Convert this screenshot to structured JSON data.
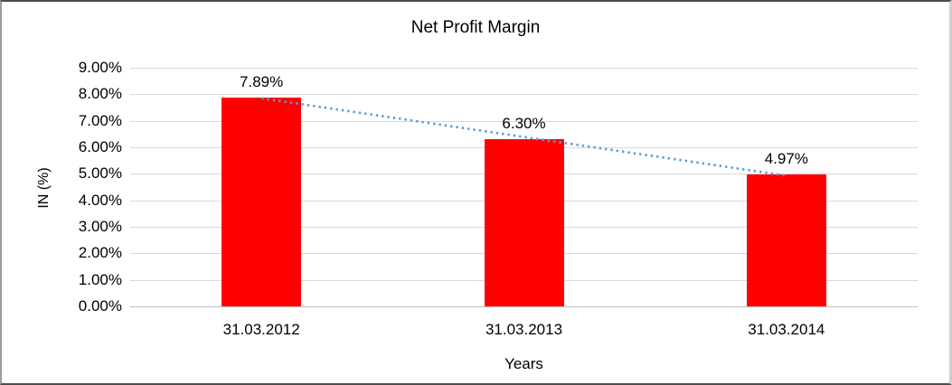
{
  "chart_data": {
    "type": "bar",
    "title": "Net Profit Margin",
    "ylabel": "IN (%)",
    "xlabel": "Years",
    "categories": [
      "31.03.2012",
      "31.03.2013",
      "31.03.2014"
    ],
    "values": [
      7.89,
      6.3,
      4.97
    ],
    "data_labels": [
      "7.89%",
      "6.30%",
      "4.97%"
    ],
    "y_ticks": [
      "9.00%",
      "8.00%",
      "7.00%",
      "6.00%",
      "5.00%",
      "4.00%",
      "3.00%",
      "2.00%",
      "1.00%",
      "0.00%"
    ],
    "ylim": [
      0,
      9
    ],
    "grid": true,
    "legend": "none",
    "bar_color": "#FF0000",
    "gridline_color": "#d9d9d9",
    "trendline": {
      "style": "dotted",
      "color": "#5B9BD5",
      "start_value": 7.85,
      "end_value": 4.93
    }
  }
}
